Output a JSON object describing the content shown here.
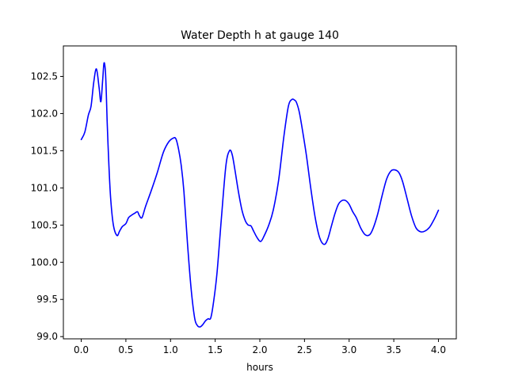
{
  "chart_data": {
    "type": "line",
    "title": "Water Depth h at gauge 140",
    "xlabel": "hours",
    "ylabel": "",
    "xlim": [
      -0.2,
      4.2
    ],
    "ylim": [
      98.97,
      102.91
    ],
    "xticks": [
      0.0,
      0.5,
      1.0,
      1.5,
      2.0,
      2.5,
      3.0,
      3.5,
      4.0
    ],
    "xtick_labels": [
      "0.0",
      "0.5",
      "1.0",
      "1.5",
      "2.0",
      "2.5",
      "3.0",
      "3.5",
      "4.0"
    ],
    "yticks": [
      99.0,
      99.5,
      100.0,
      100.5,
      101.0,
      101.5,
      102.0,
      102.5
    ],
    "ytick_labels": [
      "99.0",
      "99.5",
      "100.0",
      "100.5",
      "101.0",
      "101.5",
      "102.0",
      "102.5"
    ],
    "grid": false,
    "legend": "none",
    "series": [
      {
        "color": "#0000ff",
        "x": [
          0.0,
          0.04,
          0.08,
          0.11,
          0.14,
          0.17,
          0.2,
          0.22,
          0.24,
          0.255,
          0.27,
          0.28,
          0.29,
          0.31,
          0.33,
          0.36,
          0.4,
          0.43,
          0.46,
          0.5,
          0.53,
          0.56,
          0.6,
          0.63,
          0.65,
          0.68,
          0.72,
          0.78,
          0.85,
          0.92,
          0.98,
          1.03,
          1.06,
          1.09,
          1.12,
          1.15,
          1.19,
          1.23,
          1.27,
          1.3,
          1.33,
          1.36,
          1.39,
          1.42,
          1.45,
          1.48,
          1.52,
          1.57,
          1.62,
          1.66,
          1.69,
          1.72,
          1.76,
          1.8,
          1.84,
          1.87,
          1.9,
          1.93,
          1.97,
          2.01,
          2.05,
          2.1,
          2.15,
          2.21,
          2.27,
          2.32,
          2.36,
          2.39,
          2.41,
          2.44,
          2.47,
          2.52,
          2.57,
          2.62,
          2.67,
          2.72,
          2.76,
          2.8,
          2.84,
          2.88,
          2.92,
          2.96,
          3.0,
          3.04,
          3.08,
          3.13,
          3.18,
          3.23,
          3.27,
          3.32,
          3.37,
          3.42,
          3.47,
          3.52,
          3.56,
          3.6,
          3.65,
          3.7,
          3.75,
          3.8,
          3.85,
          3.9,
          3.94,
          3.97,
          4.0
        ],
        "y": [
          101.65,
          101.75,
          101.98,
          102.1,
          102.42,
          102.6,
          102.35,
          102.16,
          102.45,
          102.68,
          102.58,
          102.3,
          101.9,
          101.3,
          100.85,
          100.5,
          100.36,
          100.42,
          100.48,
          100.52,
          100.6,
          100.63,
          100.66,
          100.68,
          100.63,
          100.6,
          100.75,
          100.95,
          101.2,
          101.48,
          101.62,
          101.67,
          101.66,
          101.52,
          101.3,
          100.95,
          100.25,
          99.65,
          99.25,
          99.15,
          99.13,
          99.16,
          99.21,
          99.24,
          99.25,
          99.45,
          99.85,
          100.6,
          101.3,
          101.5,
          101.45,
          101.25,
          100.95,
          100.7,
          100.55,
          100.5,
          100.49,
          100.42,
          100.33,
          100.28,
          100.36,
          100.5,
          100.7,
          101.1,
          101.7,
          102.1,
          102.19,
          102.18,
          102.15,
          102.03,
          101.83,
          101.45,
          101.0,
          100.6,
          100.33,
          100.24,
          100.31,
          100.48,
          100.65,
          100.78,
          100.83,
          100.83,
          100.78,
          100.68,
          100.6,
          100.46,
          100.37,
          100.37,
          100.46,
          100.65,
          100.9,
          101.12,
          101.23,
          101.24,
          101.2,
          101.08,
          100.85,
          100.62,
          100.46,
          100.41,
          100.42,
          100.47,
          100.55,
          100.62,
          100.7
        ]
      }
    ]
  }
}
